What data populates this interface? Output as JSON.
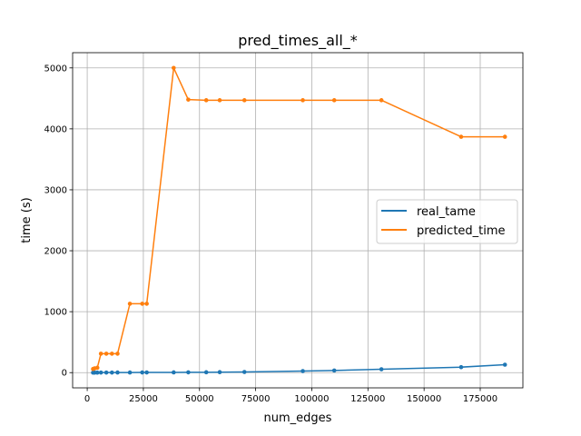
{
  "chart_data": {
    "type": "line",
    "title": "pred_times_all_*",
    "xlabel": "num_edges",
    "ylabel": "time (s)",
    "xlim": [
      -6500,
      194000
    ],
    "ylim": [
      -250,
      5250
    ],
    "xticks": [
      0,
      25000,
      50000,
      75000,
      100000,
      125000,
      150000,
      175000
    ],
    "yticks": [
      0,
      1000,
      2000,
      3000,
      4000,
      5000
    ],
    "grid": true,
    "legend_position": "center-right",
    "series": [
      {
        "name": "real_tame",
        "color": "#1f77b4",
        "x": [
          2600,
          3300,
          4500,
          6100,
          8500,
          11000,
          13500,
          19000,
          24500,
          26500,
          38500,
          45000,
          53000,
          59000,
          70000,
          96000,
          110000,
          131000,
          166500,
          186000
        ],
        "y": [
          0,
          0,
          0,
          1,
          1,
          1,
          2,
          2,
          3,
          3,
          4,
          5,
          6,
          8,
          10,
          25,
          35,
          55,
          90,
          130
        ]
      },
      {
        "name": "predicted_time",
        "color": "#ff7f0e",
        "x": [
          2600,
          3300,
          4500,
          6100,
          8500,
          11000,
          13500,
          19000,
          24500,
          26500,
          38500,
          45000,
          53000,
          59000,
          70000,
          96000,
          110000,
          131000,
          166500,
          186000
        ],
        "y": [
          60,
          70,
          80,
          310,
          310,
          310,
          310,
          1130,
          1130,
          1130,
          5000,
          4480,
          4470,
          4470,
          4470,
          4470,
          4470,
          4470,
          3870,
          3870
        ]
      }
    ]
  }
}
